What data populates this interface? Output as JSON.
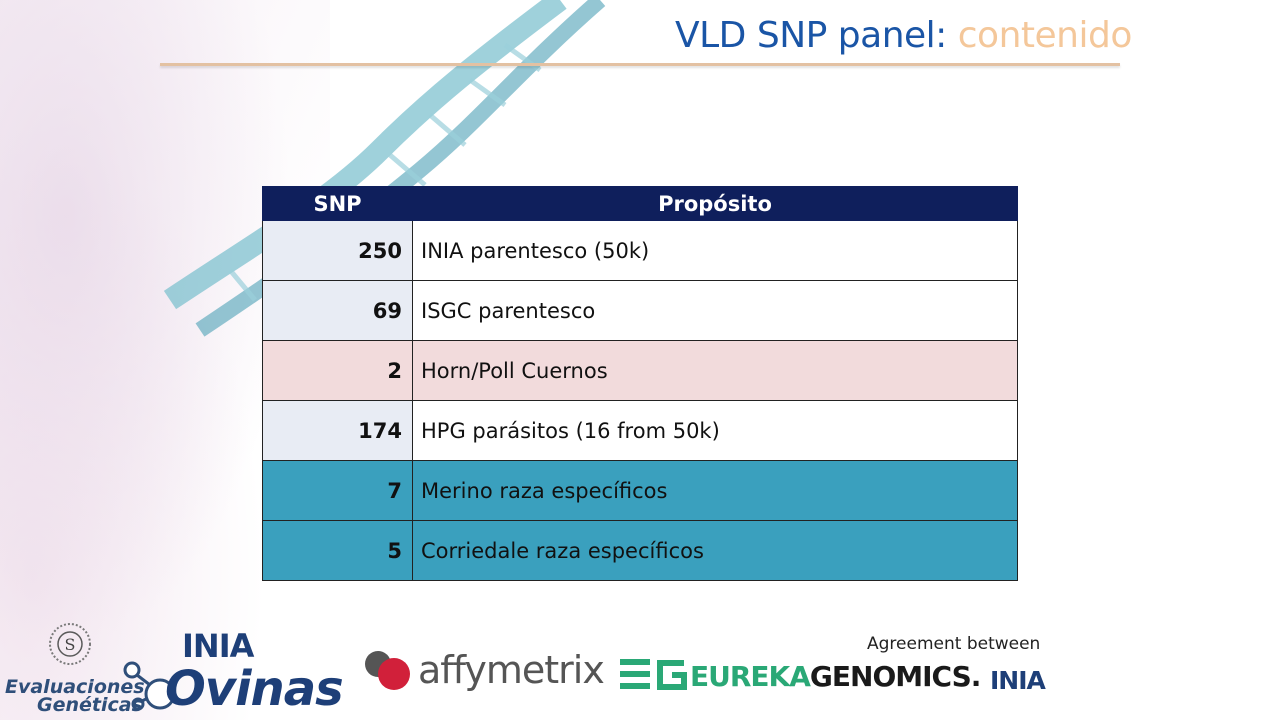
{
  "slide": {
    "title_main": "VLD SNP panel:",
    "title_accent": "contenido"
  },
  "table": {
    "headers": [
      "SNP",
      "Propósito"
    ],
    "rows": [
      {
        "snp": "250",
        "purpose": "INIA parentesco (50k)"
      },
      {
        "snp": "69",
        "purpose": "ISGC parentesco"
      },
      {
        "snp": "2",
        "purpose": "Horn/Poll Cuernos"
      },
      {
        "snp": "174",
        "purpose": "HPG parásitos (16 from 50k)"
      },
      {
        "snp": "7",
        "purpose": "Merino raza específicos"
      },
      {
        "snp": "5",
        "purpose": "Corriedale raza específicos"
      }
    ]
  },
  "footer": {
    "agreement_text": "Agreement between",
    "logos": {
      "evaluaciones_line1": "Evaluaciones",
      "evaluaciones_line2": "Genéticas",
      "ovinas": "Ovinas",
      "inia": "INIA",
      "affymetrix": "affymetrix",
      "eureka_part1": "EUREKA",
      "eureka_part2": "GENOMICS."
    }
  },
  "colors": {
    "title_blue": "#1a55a6",
    "title_accent": "#f4c79a",
    "header_navy": "#0f1f5c",
    "row_pink": "#f2dbdc",
    "row_teal": "#3aa0be"
  }
}
